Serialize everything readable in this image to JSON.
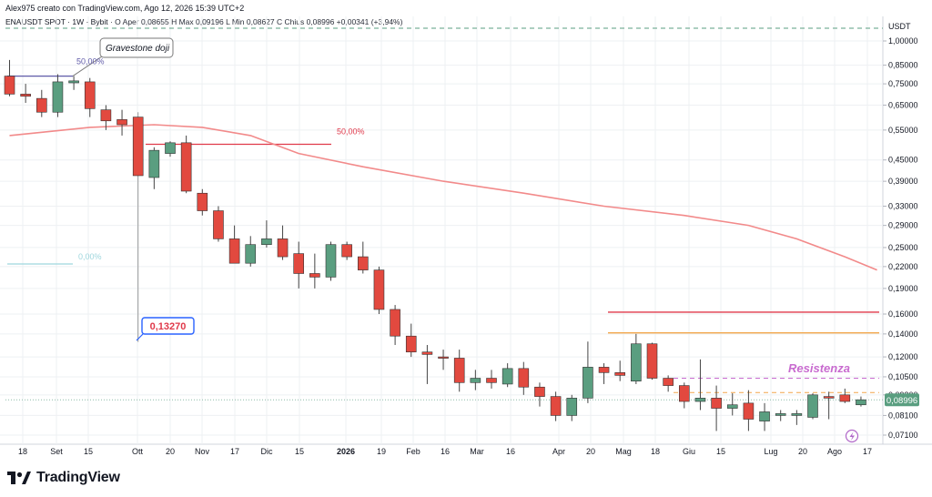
{
  "header": {
    "credit": "Alex975 creato con TradingView.com, Ago 12, 2026 15:39 UTC+2",
    "symbol": "ENAUSDT SPOT · 1W · Bybit",
    "ohlc": "O  Aper 0,08655  H  Max 0,09196  L  Min 0,08627  C  Chius 0,08996  +0,00341 (+3,94%)"
  },
  "brand": {
    "name": "TradingView"
  },
  "colors": {
    "up": "#5a9e80",
    "down": "#e2493f",
    "ma": "#f28a8a",
    "grid": "#eef0f3",
    "resistance_text": "#c86bcf",
    "redline": "#e0394a",
    "orangeline": "#f2a64a",
    "tealdash": "#5a9e80",
    "price_label_bg": "#5a9e80"
  },
  "chart_data": {
    "type": "candlestick",
    "timeframe": "1W",
    "y_axis": {
      "unit": "USDT",
      "scale": "log",
      "ticks": [
        "1,00000",
        "0,85000",
        "0,75000",
        "0,65000",
        "0,55000",
        "0,45000",
        "0,39000",
        "0,33000",
        "0,29000",
        "0,25000",
        "0,22000",
        "0,19000",
        "0,16000",
        "0,14000",
        "0,12000",
        "0,10500",
        "0,09300",
        "0,08100",
        "0,07100"
      ],
      "last_price_label": "0,08996"
    },
    "x_axis": {
      "labels": [
        "18",
        "Set",
        "15",
        "Ott",
        "20",
        "Nov",
        "17",
        "Dic",
        "15",
        "2026",
        "19",
        "Feb",
        "16",
        "Mar",
        "16",
        "Apr",
        "20",
        "Mag",
        "18",
        "Giu",
        "15",
        "Lug",
        "20",
        "Ago",
        "17"
      ]
    },
    "candles": [
      [
        0.79,
        0.88,
        0.69,
        0.7
      ],
      [
        0.7,
        0.75,
        0.66,
        0.69
      ],
      [
        0.68,
        0.72,
        0.6,
        0.62
      ],
      [
        0.62,
        0.8,
        0.6,
        0.76
      ],
      [
        0.755,
        0.79,
        0.72,
        0.765
      ],
      [
        0.76,
        0.78,
        0.6,
        0.635
      ],
      [
        0.63,
        0.65,
        0.55,
        0.585
      ],
      [
        0.59,
        0.63,
        0.53,
        0.57
      ],
      [
        0.6,
        0.62,
        0.1327,
        0.405
      ],
      [
        0.4,
        0.49,
        0.37,
        0.48
      ],
      [
        0.47,
        0.51,
        0.46,
        0.505
      ],
      [
        0.505,
        0.53,
        0.36,
        0.365
      ],
      [
        0.36,
        0.37,
        0.31,
        0.32
      ],
      [
        0.32,
        0.33,
        0.26,
        0.265
      ],
      [
        0.265,
        0.29,
        0.23,
        0.225
      ],
      [
        0.225,
        0.27,
        0.22,
        0.255
      ],
      [
        0.255,
        0.3,
        0.25,
        0.265
      ],
      [
        0.265,
        0.29,
        0.23,
        0.235
      ],
      [
        0.24,
        0.26,
        0.19,
        0.21
      ],
      [
        0.21,
        0.24,
        0.19,
        0.205
      ],
      [
        0.205,
        0.26,
        0.2,
        0.255
      ],
      [
        0.255,
        0.26,
        0.23,
        0.235
      ],
      [
        0.235,
        0.26,
        0.21,
        0.215
      ],
      [
        0.215,
        0.22,
        0.16,
        0.165
      ],
      [
        0.165,
        0.17,
        0.13,
        0.138
      ],
      [
        0.138,
        0.15,
        0.12,
        0.124
      ],
      [
        0.124,
        0.13,
        0.1,
        0.122
      ],
      [
        0.12,
        0.126,
        0.11,
        0.119
      ],
      [
        0.119,
        0.126,
        0.095,
        0.101
      ],
      [
        0.101,
        0.11,
        0.096,
        0.104
      ],
      [
        0.104,
        0.11,
        0.097,
        0.101
      ],
      [
        0.1,
        0.115,
        0.098,
        0.111
      ],
      [
        0.111,
        0.116,
        0.093,
        0.098
      ],
      [
        0.098,
        0.101,
        0.086,
        0.092
      ],
      [
        0.092,
        0.095,
        0.078,
        0.081
      ],
      [
        0.081,
        0.093,
        0.078,
        0.091
      ],
      [
        0.091,
        0.133,
        0.088,
        0.112
      ],
      [
        0.112,
        0.115,
        0.1,
        0.108
      ],
      [
        0.108,
        0.117,
        0.102,
        0.106
      ],
      [
        0.102,
        0.14,
        0.1,
        0.131
      ],
      [
        0.131,
        0.132,
        0.103,
        0.104
      ],
      [
        0.104,
        0.106,
        0.095,
        0.099
      ],
      [
        0.099,
        0.101,
        0.085,
        0.089
      ],
      [
        0.089,
        0.118,
        0.084,
        0.091
      ],
      [
        0.091,
        0.099,
        0.073,
        0.085
      ],
      [
        0.085,
        0.094,
        0.081,
        0.087
      ],
      [
        0.088,
        0.096,
        0.073,
        0.079
      ],
      [
        0.078,
        0.088,
        0.073,
        0.083
      ],
      [
        0.081,
        0.084,
        0.078,
        0.082
      ],
      [
        0.081,
        0.084,
        0.076,
        0.082
      ],
      [
        0.08,
        0.094,
        0.079,
        0.093
      ],
      [
        0.092,
        0.095,
        0.079,
        0.091
      ],
      [
        0.093,
        0.097,
        0.088,
        0.089
      ],
      [
        0.087,
        0.092,
        0.086,
        0.09
      ]
    ],
    "moving_average": [
      [
        0,
        0.53
      ],
      [
        5,
        0.56
      ],
      [
        9,
        0.57
      ],
      [
        12,
        0.56
      ],
      [
        15,
        0.53
      ],
      [
        18,
        0.47
      ],
      [
        22,
        0.43
      ],
      [
        27,
        0.39
      ],
      [
        32,
        0.36
      ],
      [
        37,
        0.33
      ],
      [
        42,
        0.31
      ],
      [
        46,
        0.29
      ],
      [
        49,
        0.265
      ],
      [
        52,
        0.235
      ],
      [
        54,
        0.215
      ]
    ],
    "annotations": {
      "callout_top": "Gravestone doji",
      "fib_50_top": "50,00%",
      "fib_50_mid": "50,00%",
      "fib_0": "0,00%",
      "callout_low": "0,13270",
      "resistance": "Resistenza"
    }
  }
}
